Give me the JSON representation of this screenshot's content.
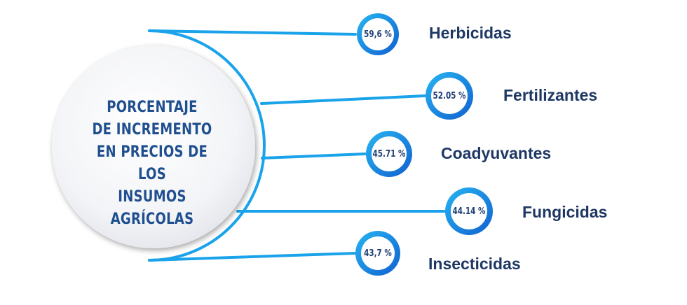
{
  "title_lines": [
    "PORCENTAJE",
    "DE INCREMENTO",
    "EN PRECIOS DE LOS",
    "INSUMOS AGRÍCOLAS"
  ],
  "items": [
    {
      "value": "59,6 %",
      "label": "Herbicidas"
    },
    {
      "value": "52.05 %",
      "label": "Fertilizantes"
    },
    {
      "value": "45.71 %",
      "label": "Coadyuvantes"
    },
    {
      "value": "44.14 %",
      "label": "Fungicidas"
    },
    {
      "value": "43,7 %",
      "label": "Insecticidas"
    }
  ],
  "colors": {
    "connector": "#1aa3ea",
    "ring_outer": "#1567d6",
    "ring_inner": "#27b5f2",
    "title": "#1f4f8f",
    "label": "#1e3763",
    "badge_text": "#1f3f75"
  }
}
